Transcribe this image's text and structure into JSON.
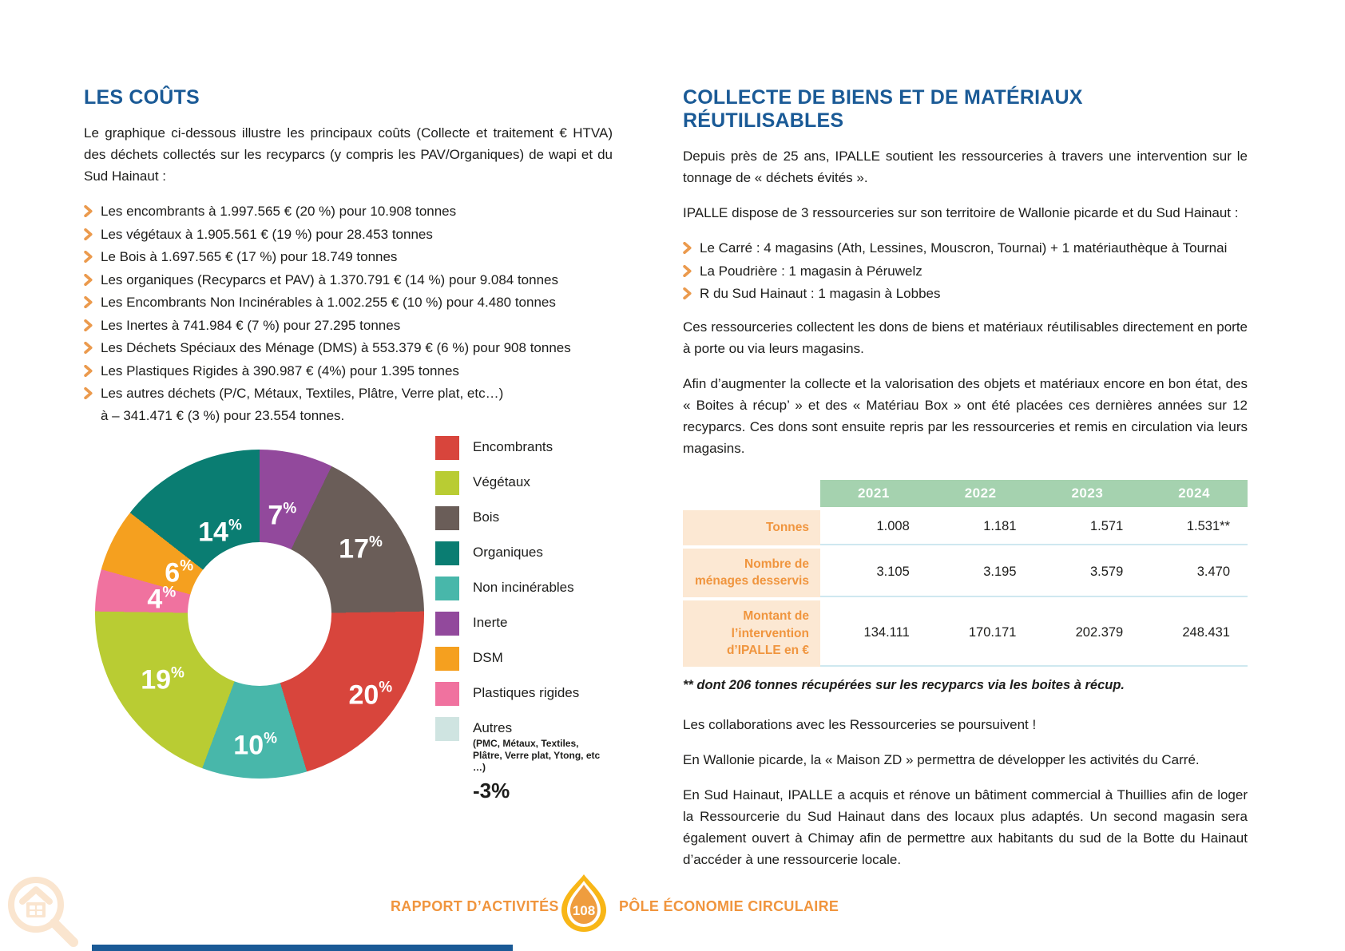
{
  "colors": {
    "title_blue": "#1a5a96",
    "bullet_orange": "#eb9a4d",
    "footer_orange": "#f0953e",
    "table_header_green": "#a5d2af",
    "table_label_bg": "#fce8d3",
    "table_divider": "#cfe8f0",
    "watermark_peach": "#fae5cf",
    "badge_yellow": "#f8b617",
    "badge_orange": "#ef9d3e",
    "bottom_bar_blue": "#1a5a96"
  },
  "left": {
    "title": "LES COÛTS",
    "intro": "Le graphique ci-dessous illustre les principaux coûts (Collecte et traitement € HTVA) des déchets collectés sur les recyparcs (y compris les PAV/Organiques) de wapi et du Sud Hainaut :",
    "bullets": [
      {
        "text": "Les encombrants à 1.997.565 € (20 %) pour 10.908 tonnes"
      },
      {
        "text": "Les végétaux à 1.905.561 € (19 %) pour 28.453 tonnes"
      },
      {
        "text": "Le Bois à 1.697.565 € (17 %) pour 18.749 tonnes"
      },
      {
        "text": "Les organiques (Recyparcs et PAV) à 1.370.791 € (14 %) pour 9.084 tonnes"
      },
      {
        "text": "Les Encombrants Non Incinérables à 1.002.255 € (10 %) pour 4.480 tonnes"
      },
      {
        "text": "Les Inertes à 741.984 € (7 %) pour 27.295 tonnes"
      },
      {
        "text": "Les Déchets Spéciaux des Ménage (DMS) à 553.379 € (6 %) pour 908 tonnes"
      },
      {
        "text": "Les Plastiques Rigides à 390.987 € (4%) pour 1.395 tonnes"
      },
      {
        "text": "Les autres déchets (P/C, Métaux, Textiles, Plâtre, Verre plat, etc…)\nà – 341.471 € (3 %) pour 23.554 tonnes."
      }
    ]
  },
  "chart_data": {
    "type": "pie",
    "donut": true,
    "unit": "%",
    "segments": [
      {
        "label": "Inerte",
        "value": 7,
        "color": "#92499c"
      },
      {
        "label": "Bois",
        "value": 17,
        "color": "#6a5d58"
      },
      {
        "label": "Encombrants",
        "value": 20,
        "color": "#d8453c"
      },
      {
        "label": "Non incinérables",
        "value": 10,
        "color": "#48b7aa"
      },
      {
        "label": "Végétaux",
        "value": 19,
        "color": "#b9cc33"
      },
      {
        "label": "Plastiques rigides",
        "value": 4,
        "color": "#f0729f"
      },
      {
        "label": "DSM",
        "value": 6,
        "color": "#f5a01f"
      },
      {
        "label": "Organiques",
        "value": 14,
        "color": "#0a7d72"
      }
    ],
    "legend": [
      {
        "label": "Encombrants",
        "color": "#d8453c"
      },
      {
        "label": "Végétaux",
        "color": "#b9cc33"
      },
      {
        "label": "Bois",
        "color": "#6a5d58"
      },
      {
        "label": "Organiques",
        "color": "#0a7d72"
      },
      {
        "label": "Non incinérables",
        "color": "#48b7aa"
      },
      {
        "label": "Inerte",
        "color": "#92499c"
      },
      {
        "label": "DSM",
        "color": "#f5a01f"
      },
      {
        "label": "Plastiques rigides",
        "color": "#f0729f"
      },
      {
        "label": "Autres",
        "color": "#cfe4e1",
        "sub": "(PMC, Métaux, Textiles, Plâtre, Verre plat, Ytong, etc …)",
        "note": "-3%"
      }
    ]
  },
  "right": {
    "title": "COLLECTE DE BIENS ET DE MATÉRIAUX RÉUTILISABLES",
    "p1": "Depuis près de 25 ans, IPALLE soutient les ressourceries à travers une intervention sur le tonnage de « déchets évités ».",
    "p2": "IPALLE dispose de 3 ressourceries sur son territoire de Wallonie picarde et du Sud Hainaut :",
    "bullets": [
      {
        "text": "Le Carré : 4 magasins (Ath, Lessines, Mouscron, Tournai) + 1 matériauthèque à Tournai"
      },
      {
        "text": "La Poudrière : 1 magasin à Péruwelz"
      },
      {
        "text": "R du Sud Hainaut : 1 magasin à Lobbes"
      }
    ],
    "p3": "Ces ressourceries collectent les dons de biens et matériaux réutilisables directement en porte à porte ou via leurs magasins.",
    "p4": "Afin d’augmenter la collecte et la valorisation des objets et matériaux encore en bon état, des « Boites à récup’ » et des « Matériau Box » ont été placées ces dernières années sur 12 recyparcs. Ces dons sont ensuite repris par les ressourceries et remis en circulation via leurs magasins.",
    "table": {
      "years": [
        "2021",
        "2022",
        "2023",
        "2024"
      ],
      "rows": [
        {
          "label": "Tonnes",
          "values": [
            "1.008",
            "1.181",
            "1.571",
            "1.531**"
          ]
        },
        {
          "label": "Nombre de ménages desservis",
          "values": [
            "3.105",
            "3.195",
            "3.579",
            "3.470"
          ]
        },
        {
          "label": "Montant de l’intervention d’IPALLE en €",
          "values": [
            "134.111",
            "170.171",
            "202.379",
            "248.431"
          ]
        }
      ]
    },
    "note": "** dont 206 tonnes récupérées sur les recyparcs via les boites à récup.",
    "p5": "Les collaborations avec les Ressourceries se poursuivent !",
    "p6": "En Wallonie picarde, la « Maison ZD » permettra de développer les activités du Carré.",
    "p7": "En Sud Hainaut, IPALLE a acquis et rénove un bâtiment commercial à Thuillies afin de loger la Ressourcerie du Sud Hainaut dans des locaux plus adaptés. Un second magasin sera également ouvert à Chimay afin de permettre aux habitants du sud de la Botte du Hainaut d’accéder à une ressourcerie locale."
  },
  "footer": {
    "left": "RAPPORT D’ACTIVITÉS 2024",
    "page_number": "108",
    "right": "PÔLE ÉCONOMIE CIRCULAIRE"
  }
}
